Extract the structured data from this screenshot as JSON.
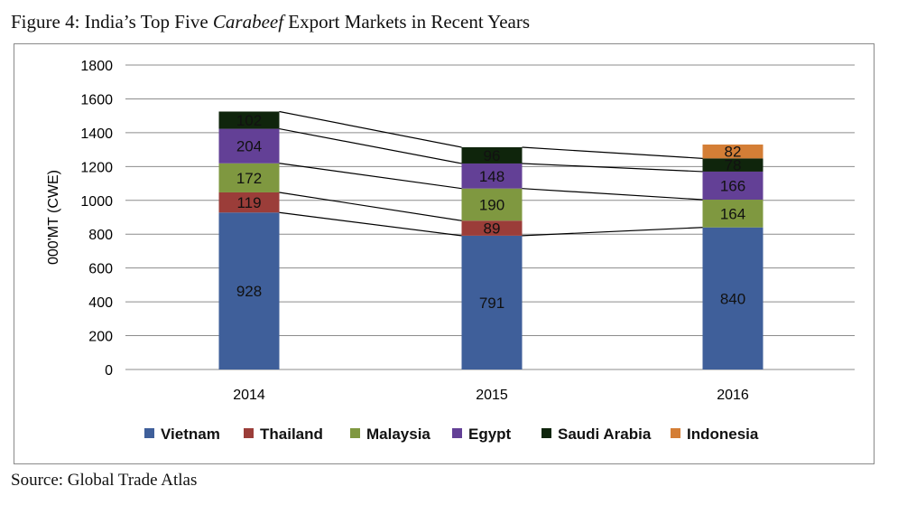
{
  "figure": {
    "title_prefix": "Figure 4: India’s Top Five ",
    "title_em": "Carabeef",
    "title_suffix": " Export Markets in Recent Years",
    "source": "Source: Global Trade Atlas"
  },
  "chart_data": {
    "type": "bar",
    "stacked": true,
    "title": "Figure 4: India’s Top Five Carabeef Export Markets in Recent Years",
    "xlabel": "",
    "ylabel": "000'MT (CWE)",
    "ylim": [
      0,
      1800
    ],
    "yticks": [
      0,
      200,
      400,
      600,
      800,
      1000,
      1200,
      1400,
      1600,
      1800
    ],
    "grid": true,
    "legend_position": "bottom",
    "series_connectors": true,
    "categories": [
      "2014",
      "2015",
      "2016"
    ],
    "series": [
      {
        "name": "Vietnam",
        "color": "#3f5f9a",
        "values": [
          928,
          791,
          840
        ]
      },
      {
        "name": "Thailand",
        "color": "#9b3d39",
        "values": [
          119,
          89,
          null
        ]
      },
      {
        "name": "Malaysia",
        "color": "#7f9840",
        "values": [
          172,
          190,
          164
        ]
      },
      {
        "name": "Egypt",
        "color": "#634096",
        "values": [
          204,
          148,
          166
        ]
      },
      {
        "name": "Saudi Arabia",
        "color": "#0f250c",
        "values": [
          102,
          96,
          78
        ]
      },
      {
        "name": "Indonesia",
        "color": "#d47e36",
        "values": [
          null,
          null,
          82
        ]
      }
    ]
  }
}
